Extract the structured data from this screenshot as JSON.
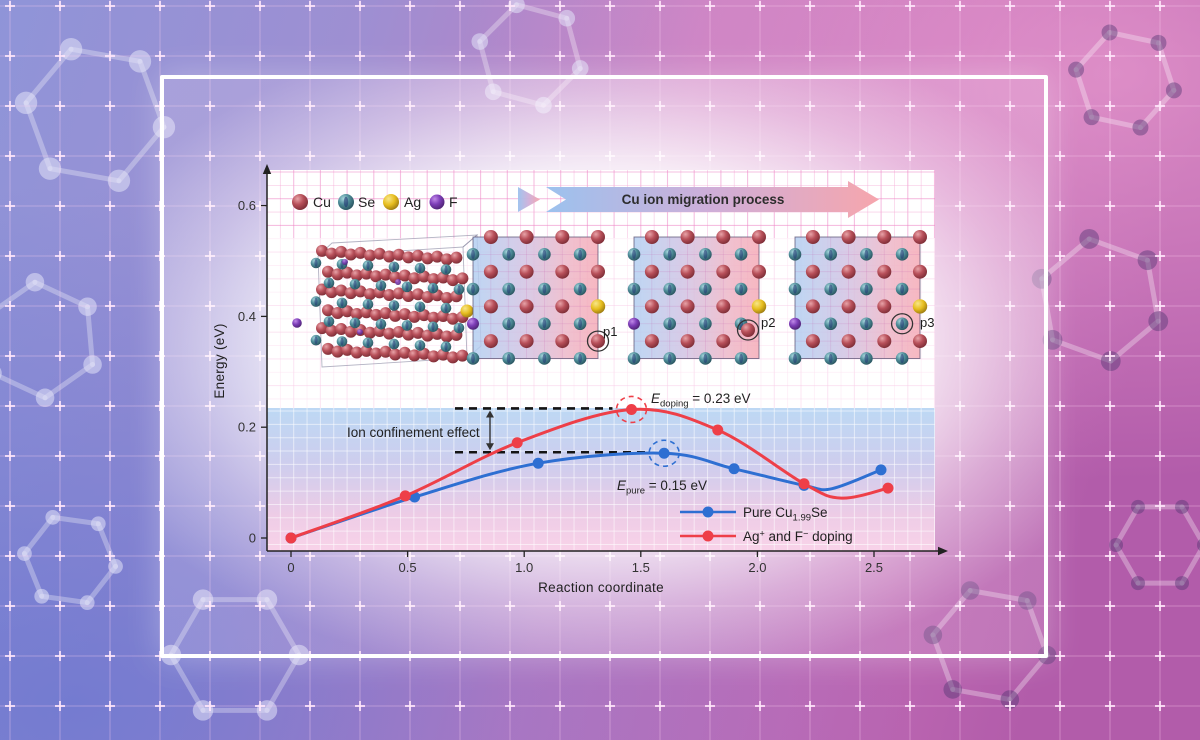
{
  "figure": {
    "atom_legend": [
      {
        "label": "Cu",
        "color": "#b5505a"
      },
      {
        "label": "Se",
        "color": "#4e8c98"
      },
      {
        "label": "Ag",
        "color": "#e6bd1e"
      },
      {
        "label": "F",
        "color": "#7d3eb8"
      }
    ],
    "migration_arrow_label": "Cu ion migration process",
    "panel_labels": [
      "p1",
      "p2",
      "p3"
    ]
  },
  "chart_data": {
    "type": "line",
    "xlabel": "Reaction coordinate",
    "ylabel": "Energy (eV)",
    "x_ticks": [
      "0",
      "0.5",
      "1.0",
      "1.5",
      "2.0",
      "2.5"
    ],
    "x_tick_values": [
      0,
      0.5,
      1.0,
      1.5,
      2.0,
      2.5
    ],
    "y_ticks": [
      "0",
      "0.2",
      "0.4",
      "0.6"
    ],
    "y_tick_values": [
      0,
      0.2,
      0.4,
      0.6
    ],
    "xlim": [
      -0.1,
      2.78
    ],
    "ylim": [
      -0.05,
      0.67
    ],
    "grid": true,
    "legend_position": "lower right",
    "series": [
      {
        "name": "Pure Cu1.99Se",
        "color": "#2e6fd2",
        "x": [
          0,
          0.53,
          1.06,
          1.6,
          1.9,
          2.2,
          2.53
        ],
        "y": [
          0,
          0.074,
          0.135,
          0.153,
          0.125,
          0.095,
          0.123
        ],
        "peak_index": 3,
        "peak_ev": 0.15
      },
      {
        "name": "Ag+ and F- doping",
        "color": "#ee3f48",
        "x": [
          0,
          0.49,
          0.97,
          1.46,
          1.83,
          2.2,
          2.56
        ],
        "y": [
          0,
          0.076,
          0.172,
          0.232,
          0.195,
          0.098,
          0.09
        ],
        "peak_index": 3,
        "peak_ev": 0.23
      }
    ],
    "annotations": {
      "confinement": "Ion confinement effect",
      "doping": {
        "symbol": "E",
        "sub": "doping",
        "rest": " = 0.23 eV"
      },
      "pure": {
        "symbol": "E",
        "sub": "pure",
        "rest": " = 0.15 eV"
      }
    },
    "legend": {
      "blue": {
        "pre": "Pure Cu",
        "sub": "1.99",
        "post": "Se"
      },
      "red": {
        "a": "Ag",
        "sup1": "+",
        "b": " and F",
        "sup2": "−",
        "c": " doping"
      }
    }
  }
}
